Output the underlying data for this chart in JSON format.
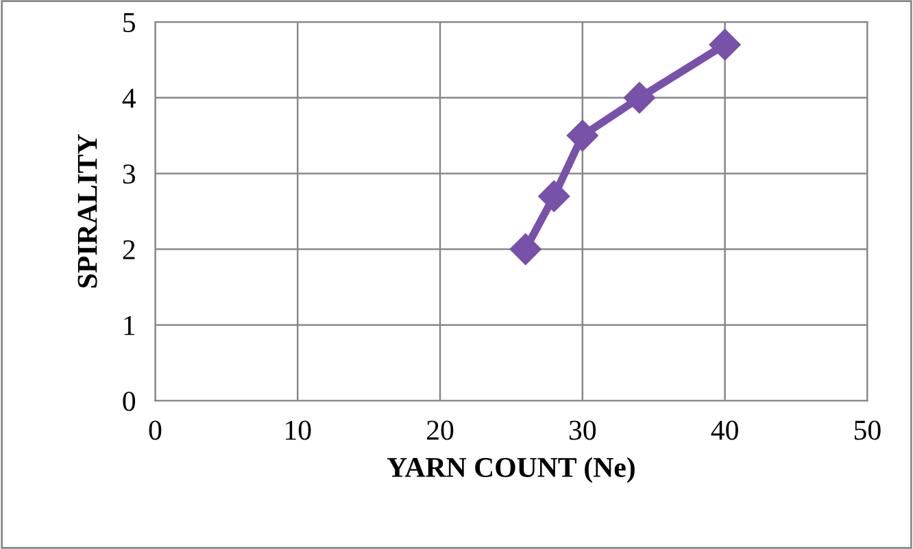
{
  "chart_data": {
    "type": "line",
    "xlabel": "YARN COUNT (Ne)",
    "ylabel": "SPIRALITY",
    "x": [
      26,
      28,
      30,
      34,
      40
    ],
    "series": [
      {
        "color": "#7851a9",
        "values": [
          2.0,
          2.7,
          3.5,
          4.0,
          4.7
        ]
      }
    ],
    "xlim": [
      0,
      50
    ],
    "xticks": [
      0,
      10,
      20,
      30,
      40,
      50
    ],
    "ylim": [
      0,
      5
    ],
    "yticks": [
      0,
      1,
      2,
      3,
      4,
      5
    ],
    "grid": true,
    "marker": "diamond",
    "line_style": "solid"
  }
}
